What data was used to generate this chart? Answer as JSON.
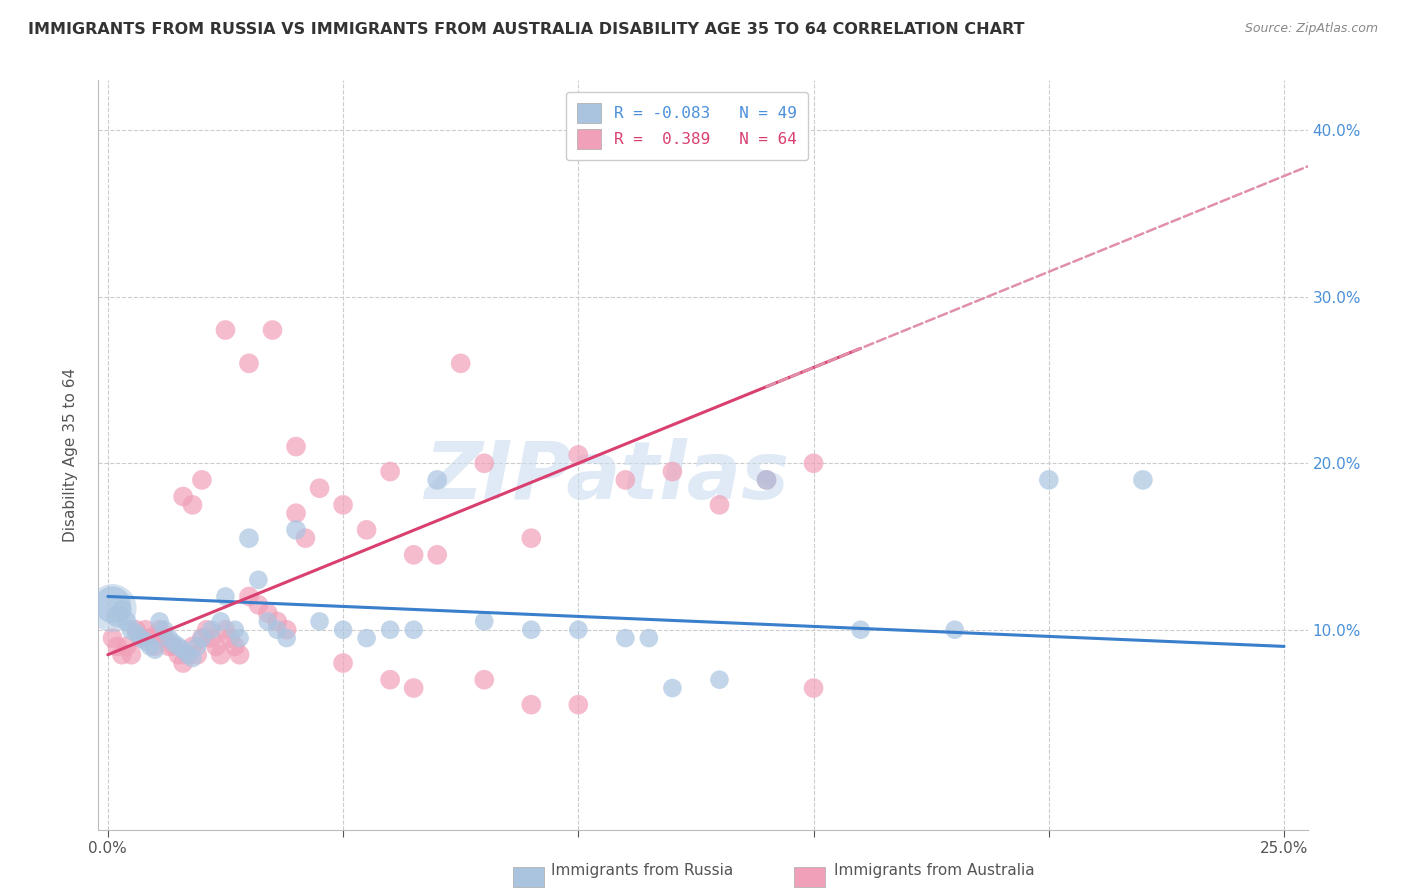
{
  "title": "IMMIGRANTS FROM RUSSIA VS IMMIGRANTS FROM AUSTRALIA DISABILITY AGE 35 TO 64 CORRELATION CHART",
  "source": "Source: ZipAtlas.com",
  "ylabel_label": "Disability Age 35 to 64",
  "xlim": [
    -0.002,
    0.255
  ],
  "ylim": [
    -0.02,
    0.43
  ],
  "x_ticks": [
    0.0,
    0.05,
    0.1,
    0.15,
    0.2,
    0.25
  ],
  "x_tick_labels": [
    "0.0%",
    "",
    "",
    "",
    "",
    "25.0%"
  ],
  "y_ticks": [
    0.1,
    0.2,
    0.3,
    0.4
  ],
  "y_tick_labels": [
    "10.0%",
    "20.0%",
    "30.0%",
    "40.0%"
  ],
  "russia_color": "#aac4e0",
  "australia_color": "#f0a0b8",
  "russia_R": "-0.083",
  "russia_N": "49",
  "australia_R": "0.389",
  "australia_N": "64",
  "russia_line_color": "#3a7fcc",
  "australia_line_color": "#d94070",
  "dashed_line_color": "#e090a8",
  "background_color": "#ffffff",
  "grid_color": "#dddddd",
  "watermark_text": "ZIPatlas",
  "russia_scatter_x": [
    0.001,
    0.002,
    0.003,
    0.004,
    0.005,
    0.006,
    0.007,
    0.008,
    0.009,
    0.01,
    0.011,
    0.012,
    0.013,
    0.014,
    0.015,
    0.016,
    0.017,
    0.018,
    0.019,
    0.02,
    0.022,
    0.024,
    0.025,
    0.027,
    0.028,
    0.03,
    0.032,
    0.034,
    0.036,
    0.038,
    0.04,
    0.045,
    0.05,
    0.055,
    0.06,
    0.065,
    0.07,
    0.08,
    0.09,
    0.1,
    0.11,
    0.115,
    0.12,
    0.13,
    0.14,
    0.16,
    0.18,
    0.2,
    0.22
  ],
  "russia_scatter_y": [
    0.115,
    0.108,
    0.112,
    0.105,
    0.1,
    0.098,
    0.095,
    0.093,
    0.09,
    0.088,
    0.105,
    0.1,
    0.095,
    0.092,
    0.09,
    0.088,
    0.085,
    0.083,
    0.09,
    0.095,
    0.1,
    0.105,
    0.12,
    0.1,
    0.095,
    0.155,
    0.13,
    0.105,
    0.1,
    0.095,
    0.16,
    0.105,
    0.1,
    0.095,
    0.1,
    0.1,
    0.19,
    0.105,
    0.1,
    0.1,
    0.095,
    0.095,
    0.065,
    0.07,
    0.19,
    0.1,
    0.1,
    0.19,
    0.19
  ],
  "russia_scatter_sizes": [
    700,
    250,
    200,
    200,
    200,
    180,
    180,
    180,
    180,
    180,
    180,
    180,
    180,
    180,
    180,
    180,
    180,
    180,
    180,
    180,
    180,
    180,
    180,
    180,
    180,
    200,
    180,
    180,
    180,
    180,
    200,
    180,
    180,
    180,
    180,
    180,
    200,
    180,
    180,
    180,
    180,
    180,
    180,
    180,
    200,
    180,
    180,
    200,
    200
  ],
  "australia_scatter_x": [
    0.001,
    0.002,
    0.003,
    0.004,
    0.005,
    0.006,
    0.007,
    0.008,
    0.009,
    0.01,
    0.011,
    0.012,
    0.013,
    0.014,
    0.015,
    0.016,
    0.017,
    0.018,
    0.019,
    0.02,
    0.021,
    0.022,
    0.023,
    0.024,
    0.025,
    0.026,
    0.027,
    0.028,
    0.03,
    0.032,
    0.034,
    0.036,
    0.038,
    0.04,
    0.042,
    0.045,
    0.05,
    0.055,
    0.06,
    0.065,
    0.07,
    0.075,
    0.08,
    0.09,
    0.1,
    0.11,
    0.12,
    0.13,
    0.14,
    0.15,
    0.016,
    0.018,
    0.02,
    0.025,
    0.03,
    0.035,
    0.04,
    0.05,
    0.06,
    0.065,
    0.08,
    0.09,
    0.1,
    0.15
  ],
  "australia_scatter_y": [
    0.095,
    0.09,
    0.085,
    0.09,
    0.085,
    0.1,
    0.095,
    0.1,
    0.095,
    0.09,
    0.1,
    0.095,
    0.09,
    0.09,
    0.085,
    0.08,
    0.085,
    0.09,
    0.085,
    0.095,
    0.1,
    0.095,
    0.09,
    0.085,
    0.1,
    0.095,
    0.09,
    0.085,
    0.12,
    0.115,
    0.11,
    0.105,
    0.1,
    0.17,
    0.155,
    0.185,
    0.175,
    0.16,
    0.195,
    0.145,
    0.145,
    0.26,
    0.2,
    0.155,
    0.205,
    0.19,
    0.195,
    0.175,
    0.19,
    0.2,
    0.18,
    0.175,
    0.19,
    0.28,
    0.26,
    0.28,
    0.21,
    0.08,
    0.07,
    0.065,
    0.07,
    0.055,
    0.055,
    0.065
  ],
  "australia_scatter_sizes": [
    200,
    200,
    200,
    200,
    200,
    200,
    200,
    200,
    200,
    200,
    200,
    200,
    200,
    200,
    200,
    200,
    200,
    200,
    200,
    200,
    200,
    200,
    200,
    200,
    200,
    200,
    200,
    200,
    200,
    200,
    200,
    200,
    200,
    200,
    200,
    200,
    200,
    200,
    200,
    200,
    200,
    200,
    200,
    200,
    200,
    200,
    200,
    200,
    200,
    200,
    200,
    200,
    200,
    200,
    200,
    200,
    200,
    200,
    200,
    200,
    200,
    200,
    200,
    200
  ]
}
